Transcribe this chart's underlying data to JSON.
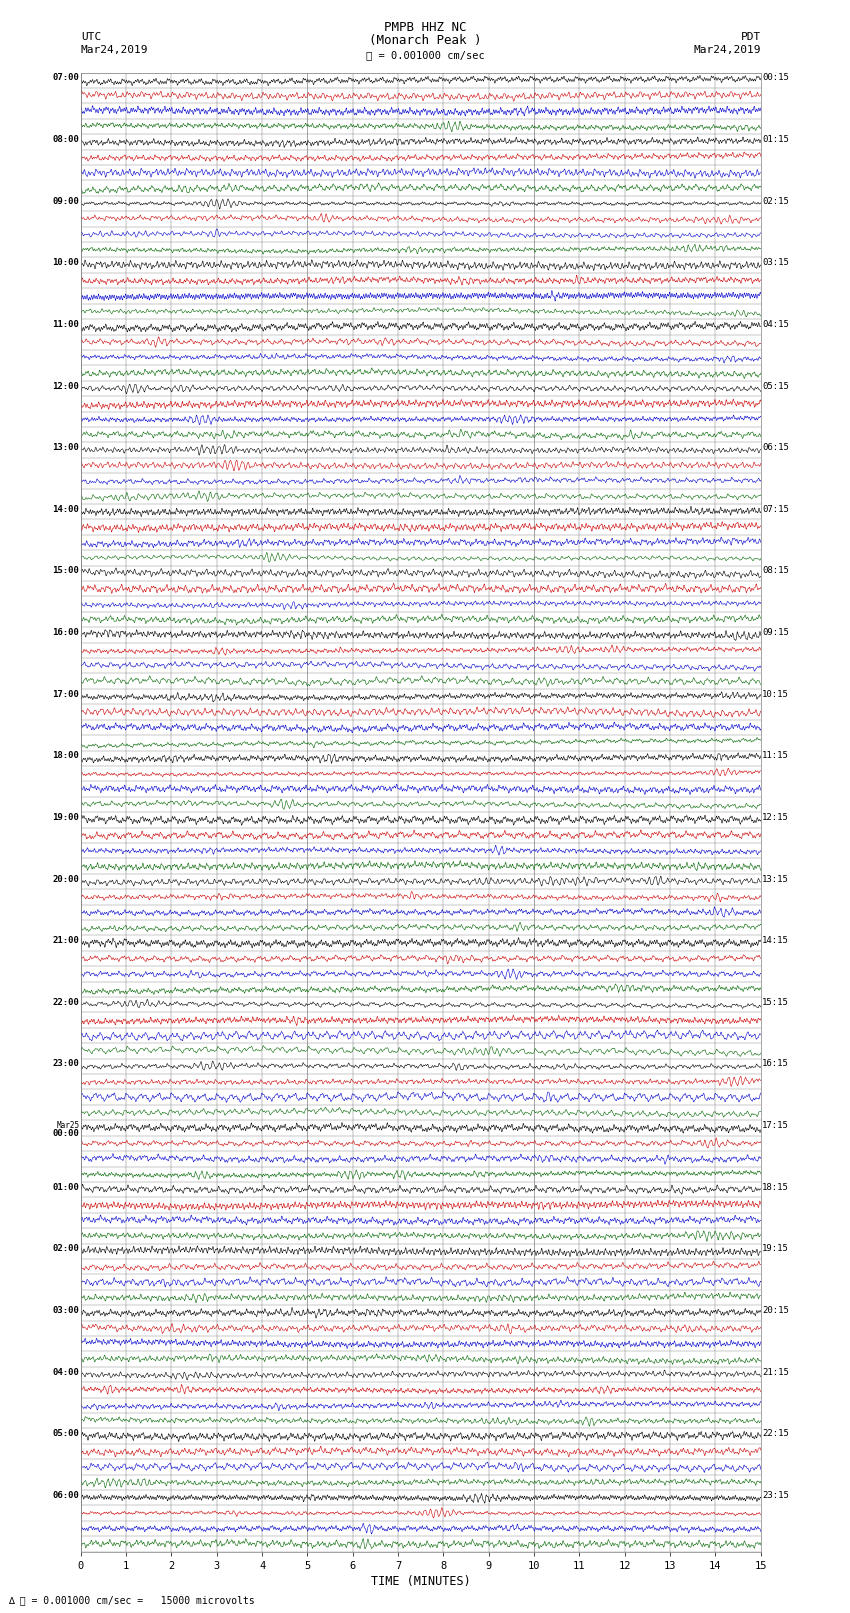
{
  "title_line1": "PMPB HHZ NC",
  "title_line2": "(Monarch Peak )",
  "scale_text": "= 0.001000 cm/sec",
  "left_label": "UTC",
  "left_date": "Mar24,2019",
  "right_label": "PDT",
  "right_date": "Mar24,2019",
  "bottom_note": "∆ ⎸ = 0.001000 cm/sec =   15000 microvolts",
  "xlabel": "TIME (MINUTES)",
  "x_min": 0,
  "x_max": 15,
  "x_ticks": [
    0,
    1,
    2,
    3,
    4,
    5,
    6,
    7,
    8,
    9,
    10,
    11,
    12,
    13,
    14,
    15
  ],
  "bg_color": "#ffffff",
  "grid_color": "#808080",
  "trace_colors": [
    "#000000",
    "#cc0000",
    "#0000cc",
    "#006600"
  ],
  "noise_amplitude": [
    0.25,
    0.2,
    0.18,
    0.15
  ],
  "left_times": [
    "07:00",
    "",
    "",
    "",
    "08:00",
    "",
    "",
    "",
    "09:00",
    "",
    "",
    "",
    "10:00",
    "",
    "",
    "",
    "11:00",
    "",
    "",
    "",
    "12:00",
    "",
    "",
    "",
    "13:00",
    "",
    "",
    "",
    "14:00",
    "",
    "",
    "",
    "15:00",
    "",
    "",
    "",
    "16:00",
    "",
    "",
    "",
    "17:00",
    "",
    "",
    "",
    "18:00",
    "",
    "",
    "",
    "19:00",
    "",
    "",
    "",
    "20:00",
    "",
    "",
    "",
    "21:00",
    "",
    "",
    "",
    "22:00",
    "",
    "",
    "",
    "23:00",
    "",
    "",
    "",
    "Mar25|00:00",
    "",
    "",
    "",
    "01:00",
    "",
    "",
    "",
    "02:00",
    "",
    "",
    "",
    "03:00",
    "",
    "",
    "",
    "04:00",
    "",
    "",
    "",
    "05:00",
    "",
    "",
    "",
    "06:00",
    "",
    "",
    ""
  ],
  "right_times": [
    "00:15",
    "",
    "",
    "",
    "01:15",
    "",
    "",
    "",
    "02:15",
    "",
    "",
    "",
    "03:15",
    "",
    "",
    "",
    "04:15",
    "",
    "",
    "",
    "05:15",
    "",
    "",
    "",
    "06:15",
    "",
    "",
    "",
    "07:15",
    "",
    "",
    "",
    "08:15",
    "",
    "",
    "",
    "09:15",
    "",
    "",
    "",
    "10:15",
    "",
    "",
    "",
    "11:15",
    "",
    "",
    "",
    "12:15",
    "",
    "",
    "",
    "13:15",
    "",
    "",
    "",
    "14:15",
    "",
    "",
    "",
    "15:15",
    "",
    "",
    "",
    "16:15",
    "",
    "",
    "",
    "17:15",
    "",
    "",
    "",
    "18:15",
    "",
    "",
    "",
    "19:15",
    "",
    "",
    "",
    "20:15",
    "",
    "",
    "",
    "21:15",
    "",
    "",
    "",
    "22:15",
    "",
    "",
    "",
    "23:15",
    "",
    "",
    ""
  ],
  "figsize": [
    8.5,
    16.13
  ],
  "dpi": 100
}
